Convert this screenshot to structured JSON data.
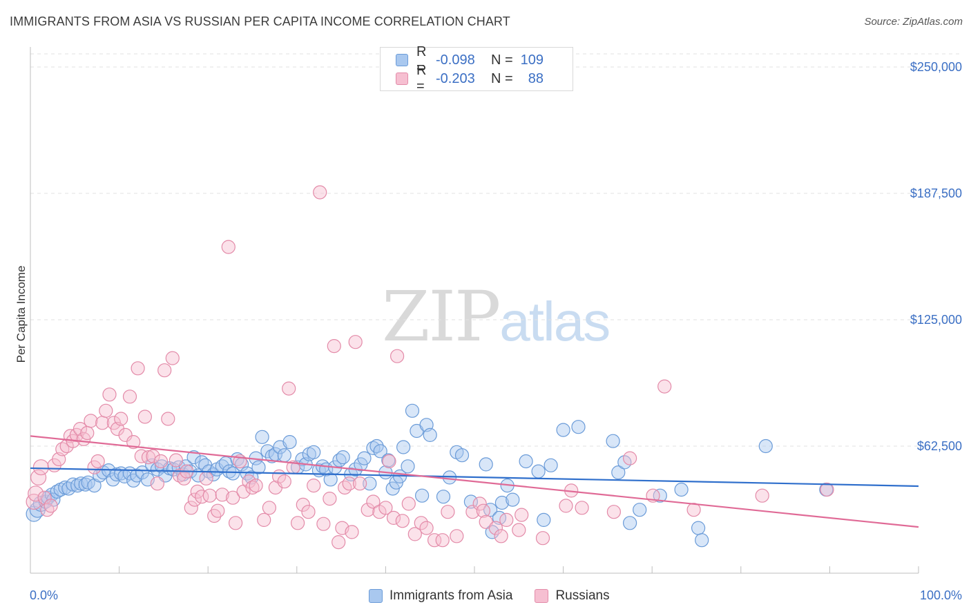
{
  "title": "IMMIGRANTS FROM ASIA VS RUSSIAN PER CAPITA INCOME CORRELATION CHART",
  "source": "Source: ZipAtlas.com",
  "watermark": {
    "zip": "ZIP",
    "atlas": "atlas"
  },
  "legend": {
    "rows": [
      {
        "r_label": "R =",
        "r_value": "-0.098",
        "n_label": "N =",
        "n_value": "109",
        "color": "#a9c8ef",
        "border": "#6a9bd8"
      },
      {
        "r_label": "R =",
        "r_value": "-0.203",
        "n_label": "N =",
        "n_value": "88",
        "color": "#f6bfd1",
        "border": "#e38aa8"
      }
    ]
  },
  "bottom_legend": [
    {
      "label": "Immigrants from Asia",
      "color": "#a9c8ef",
      "border": "#6a9bd8"
    },
    {
      "label": "Russians",
      "color": "#f6bfd1",
      "border": "#e38aa8"
    }
  ],
  "chart_data": {
    "type": "scatter",
    "title": "IMMIGRANTS FROM ASIA VS RUSSIAN PER CAPITA INCOME CORRELATION CHART",
    "xlabel": "",
    "ylabel": "Per Capita Income",
    "x_tick_labels": {
      "min": "0.0%",
      "max": "100.0%"
    },
    "xlim": [
      0,
      100
    ],
    "ylim": [
      0,
      250000
    ],
    "y_ticks": [
      62500,
      125000,
      187500,
      250000
    ],
    "y_tick_labels": [
      "$62,500",
      "$125,000",
      "$187,500",
      "$250,000"
    ],
    "grid": true,
    "legend_position": "top-center",
    "series": [
      {
        "name": "Immigrants from Asia",
        "color": "#6a9bd8",
        "fill": "rgba(169,200,239,0.45)",
        "trend": {
          "x": [
            0,
            100
          ],
          "y": [
            51600,
            42700
          ],
          "color": "#2f6fcc"
        },
        "points": [
          [
            0.4,
            29000
          ],
          [
            0.8,
            31000
          ],
          [
            1.2,
            34000
          ],
          [
            1.7,
            35000
          ],
          [
            2.0,
            37000
          ],
          [
            2.4,
            38500
          ],
          [
            2.6,
            36000
          ],
          [
            3.0,
            40000
          ],
          [
            3.4,
            41000
          ],
          [
            3.9,
            42000
          ],
          [
            4.3,
            41500
          ],
          [
            4.8,
            43500
          ],
          [
            5.3,
            43000
          ],
          [
            5.7,
            44000
          ],
          [
            6.2,
            43500
          ],
          [
            6.5,
            44500
          ],
          [
            7.2,
            43000
          ],
          [
            7.8,
            48000
          ],
          [
            8.2,
            49500
          ],
          [
            8.8,
            50500
          ],
          [
            9.3,
            46000
          ],
          [
            9.7,
            48500
          ],
          [
            10.2,
            49000
          ],
          [
            10.6,
            47500
          ],
          [
            11.2,
            49000
          ],
          [
            11.6,
            45500
          ],
          [
            12.0,
            48000
          ],
          [
            12.6,
            49500
          ],
          [
            13.2,
            46000
          ],
          [
            13.7,
            53000
          ],
          [
            14.3,
            51000
          ],
          [
            14.8,
            52500
          ],
          [
            15.2,
            48000
          ],
          [
            15.7,
            51500
          ],
          [
            16.1,
            51000
          ],
          [
            16.7,
            52000
          ],
          [
            17.2,
            48500
          ],
          [
            17.5,
            52500
          ],
          [
            18.0,
            50000
          ],
          [
            18.4,
            57000
          ],
          [
            18.9,
            48000
          ],
          [
            19.3,
            54500
          ],
          [
            19.7,
            53000
          ],
          [
            20.1,
            50000
          ],
          [
            20.6,
            48500
          ],
          [
            21.0,
            51000
          ],
          [
            21.6,
            52500
          ],
          [
            22.0,
            54000
          ],
          [
            22.4,
            50000
          ],
          [
            22.8,
            49000
          ],
          [
            23.3,
            56000
          ],
          [
            23.8,
            53500
          ],
          [
            24.4,
            49000
          ],
          [
            24.9,
            47000
          ],
          [
            25.4,
            56500
          ],
          [
            25.7,
            52000
          ],
          [
            26.1,
            67000
          ],
          [
            26.7,
            60000
          ],
          [
            27.2,
            57500
          ],
          [
            27.6,
            58500
          ],
          [
            28.1,
            62000
          ],
          [
            28.6,
            58000
          ],
          [
            29.2,
            64500
          ],
          [
            30.1,
            52000
          ],
          [
            30.6,
            56000
          ],
          [
            31.0,
            53500
          ],
          [
            31.4,
            58500
          ],
          [
            31.9,
            59500
          ],
          [
            32.5,
            50500
          ],
          [
            32.9,
            52500
          ],
          [
            33.3,
            51000
          ],
          [
            33.8,
            46000
          ],
          [
            34.3,
            52000
          ],
          [
            34.8,
            55500
          ],
          [
            35.2,
            57000
          ],
          [
            36.1,
            48500
          ],
          [
            36.6,
            51000
          ],
          [
            37.2,
            53500
          ],
          [
            37.6,
            56500
          ],
          [
            38.2,
            44000
          ],
          [
            38.6,
            61500
          ],
          [
            39.0,
            62500
          ],
          [
            39.4,
            60000
          ],
          [
            40.0,
            49500
          ],
          [
            40.3,
            55500
          ],
          [
            40.8,
            41500
          ],
          [
            41.2,
            44500
          ],
          [
            41.6,
            47500
          ],
          [
            42.0,
            62000
          ],
          [
            42.5,
            52500
          ],
          [
            43.0,
            80000
          ],
          [
            43.5,
            70000
          ],
          [
            44.1,
            38000
          ],
          [
            44.6,
            73000
          ],
          [
            45.0,
            68000
          ],
          [
            46.5,
            37500
          ],
          [
            47.2,
            47000
          ],
          [
            48.0,
            59500
          ],
          [
            48.6,
            58000
          ],
          [
            49.6,
            35000
          ],
          [
            51.3,
            53500
          ],
          [
            51.8,
            31000
          ],
          [
            52.0,
            20000
          ],
          [
            52.8,
            27000
          ],
          [
            53.1,
            34500
          ],
          [
            53.7,
            43000
          ],
          [
            54.3,
            36000
          ],
          [
            55.8,
            55000
          ],
          [
            57.2,
            50000
          ],
          [
            57.8,
            26000
          ],
          [
            58.6,
            53000
          ],
          [
            60.0,
            70500
          ],
          [
            61.7,
            72000
          ],
          [
            65.6,
            65000
          ],
          [
            66.2,
            49500
          ],
          [
            66.9,
            54500
          ],
          [
            67.5,
            24500
          ],
          [
            68.6,
            31000
          ],
          [
            70.9,
            38000
          ],
          [
            73.3,
            41000
          ],
          [
            75.2,
            22000
          ],
          [
            75.6,
            16000
          ],
          [
            82.8,
            62500
          ],
          [
            89.6,
            41000
          ]
        ]
      },
      {
        "name": "Russians",
        "color": "#e38aa8",
        "fill": "rgba(246,191,209,0.45)",
        "trend": {
          "x": [
            0,
            100
          ],
          "y": [
            67500,
            22500
          ],
          "color": "#e06a96"
        },
        "points": [
          [
            0.4,
            35000
          ],
          [
            0.6,
            39000
          ],
          [
            0.9,
            47000
          ],
          [
            1.2,
            52000
          ],
          [
            1.6,
            37000
          ],
          [
            1.9,
            31000
          ],
          [
            2.3,
            33000
          ],
          [
            2.7,
            53000
          ],
          [
            3.2,
            56000
          ],
          [
            3.6,
            61000
          ],
          [
            4.1,
            62500
          ],
          [
            4.5,
            67500
          ],
          [
            4.8,
            65000
          ],
          [
            5.2,
            68000
          ],
          [
            5.6,
            71000
          ],
          [
            6.0,
            66000
          ],
          [
            6.4,
            69000
          ],
          [
            6.8,
            75000
          ],
          [
            7.2,
            52000
          ],
          [
            7.6,
            55000
          ],
          [
            8.1,
            74000
          ],
          [
            8.5,
            80000
          ],
          [
            8.9,
            88000
          ],
          [
            9.4,
            74000
          ],
          [
            9.8,
            71000
          ],
          [
            10.2,
            76000
          ],
          [
            10.7,
            68000
          ],
          [
            11.2,
            87000
          ],
          [
            11.6,
            64500
          ],
          [
            12.1,
            101000
          ],
          [
            12.5,
            57500
          ],
          [
            12.9,
            77000
          ],
          [
            13.3,
            57000
          ],
          [
            13.8,
            57500
          ],
          [
            14.3,
            44000
          ],
          [
            14.7,
            55000
          ],
          [
            15.1,
            100000
          ],
          [
            15.5,
            76000
          ],
          [
            16.0,
            106000
          ],
          [
            16.4,
            55500
          ],
          [
            16.8,
            48000
          ],
          [
            17.3,
            46500
          ],
          [
            17.6,
            50000
          ],
          [
            18.1,
            32000
          ],
          [
            18.5,
            36000
          ],
          [
            18.8,
            40000
          ],
          [
            19.3,
            37500
          ],
          [
            19.8,
            46500
          ],
          [
            20.2,
            38000
          ],
          [
            20.7,
            28000
          ],
          [
            21.1,
            30500
          ],
          [
            21.6,
            38500
          ],
          [
            22.3,
            161000
          ],
          [
            22.8,
            37000
          ],
          [
            23.1,
            24500
          ],
          [
            23.6,
            55000
          ],
          [
            24.0,
            40000
          ],
          [
            24.6,
            45000
          ],
          [
            25.0,
            42000
          ],
          [
            25.4,
            43000
          ],
          [
            26.3,
            26000
          ],
          [
            26.9,
            32000
          ],
          [
            27.6,
            42000
          ],
          [
            28.0,
            47500
          ],
          [
            28.6,
            45000
          ],
          [
            29.1,
            91000
          ],
          [
            29.6,
            52000
          ],
          [
            30.1,
            24500
          ],
          [
            30.7,
            33500
          ],
          [
            31.3,
            30000
          ],
          [
            31.9,
            43000
          ],
          [
            32.6,
            188000
          ],
          [
            33.0,
            24000
          ],
          [
            33.7,
            36500
          ],
          [
            34.2,
            112000
          ],
          [
            34.7,
            15000
          ],
          [
            35.1,
            22000
          ],
          [
            35.4,
            42000
          ],
          [
            35.9,
            44000
          ],
          [
            36.2,
            20000
          ],
          [
            36.6,
            114000
          ],
          [
            37.1,
            44000
          ],
          [
            38.0,
            31000
          ],
          [
            38.6,
            35000
          ],
          [
            39.3,
            30000
          ],
          [
            40.0,
            32000
          ],
          [
            40.4,
            55000
          ],
          [
            40.9,
            27000
          ],
          [
            41.3,
            107000
          ],
          [
            41.9,
            25500
          ],
          [
            42.6,
            34000
          ],
          [
            43.3,
            19000
          ],
          [
            44.0,
            24500
          ],
          [
            44.6,
            22000
          ],
          [
            45.5,
            16000
          ],
          [
            46.4,
            16000
          ],
          [
            47.0,
            30000
          ],
          [
            48.0,
            18000
          ],
          [
            49.8,
            30000
          ],
          [
            50.6,
            34000
          ],
          [
            51.0,
            30500
          ],
          [
            51.3,
            25000
          ],
          [
            52.4,
            22000
          ],
          [
            53.0,
            18000
          ],
          [
            53.6,
            26000
          ],
          [
            55.0,
            21000
          ],
          [
            55.3,
            28500
          ],
          [
            57.7,
            17000
          ],
          [
            60.3,
            33000
          ],
          [
            60.9,
            40500
          ],
          [
            62.1,
            32000
          ],
          [
            65.7,
            30000
          ],
          [
            67.5,
            56500
          ],
          [
            70.1,
            38000
          ],
          [
            71.4,
            92000
          ],
          [
            74.7,
            31000
          ],
          [
            82.4,
            38000
          ],
          [
            89.7,
            41000
          ]
        ]
      }
    ]
  }
}
